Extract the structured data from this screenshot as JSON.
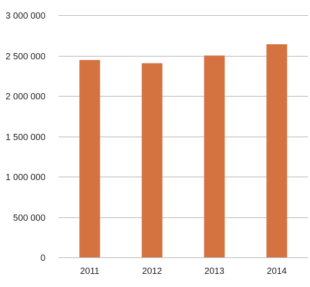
{
  "chart_data": {
    "type": "bar",
    "title": "",
    "xlabel": "",
    "ylabel": "",
    "categories": [
      "2011",
      "2012",
      "2013",
      "2014"
    ],
    "values": [
      2445000,
      2405000,
      2500000,
      2640000
    ],
    "ylim": [
      0,
      3000000
    ],
    "yticks": [
      0,
      500000,
      1000000,
      1500000,
      2000000,
      2500000,
      3000000
    ],
    "ytick_labels": [
      "0",
      "500 000",
      "1 000 000",
      "1 500 000",
      "2 000 000",
      "2 500 000",
      "3 000 000"
    ],
    "grid": true,
    "legend": "none",
    "bar_color": "#d57340",
    "grid_color": "#b8b8b8"
  }
}
